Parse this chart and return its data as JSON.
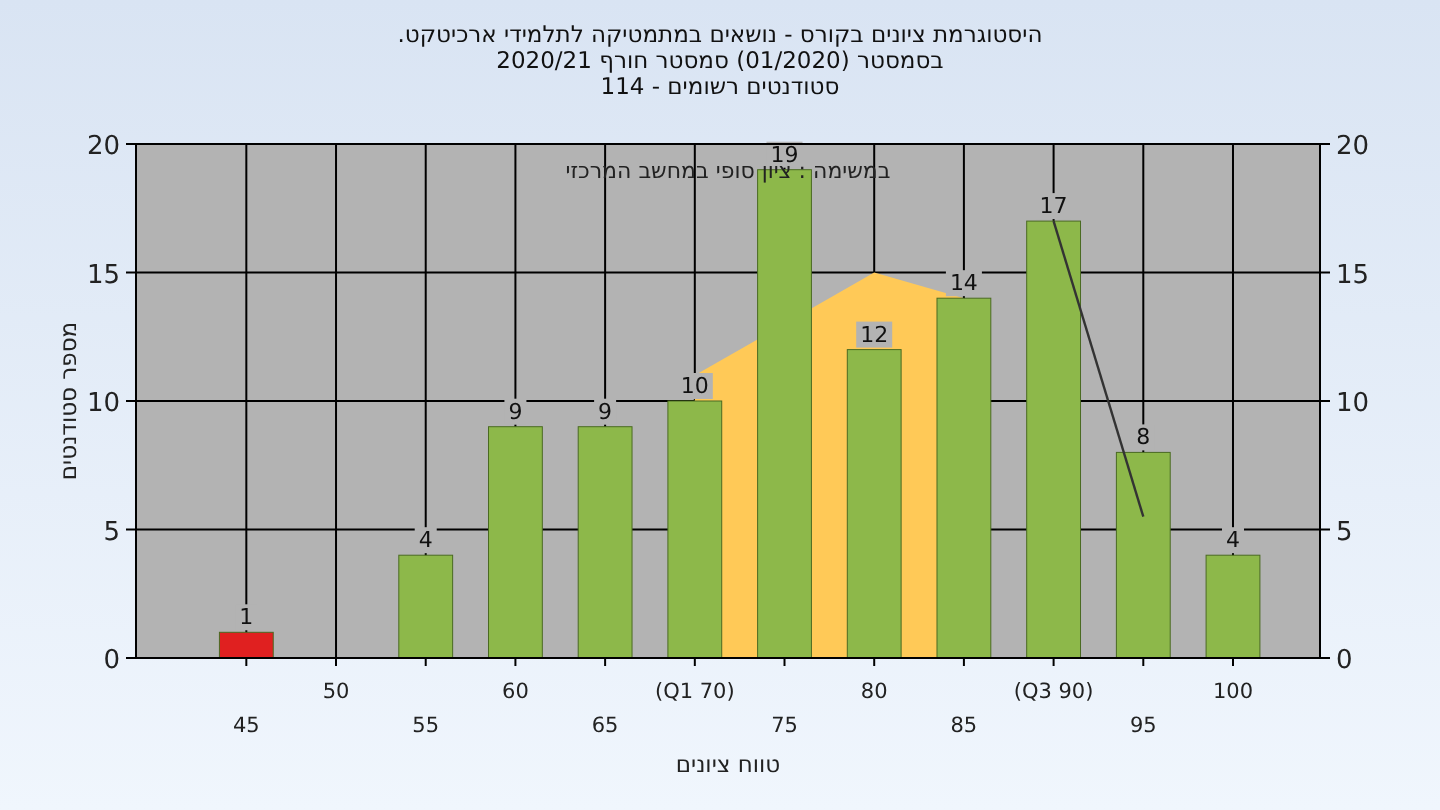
{
  "chart_data": {
    "type": "bar",
    "title": "היסטוגרמת ציונים בקורס - נושאים במתמטיקה לתלמידי ארכיטקט.",
    "subtitle": "בסמסטר  (01/2020)  סמסטר חורף 2020/21\nסטודנטים רשומים - 114",
    "xlabel": "טווח ציונים",
    "ylabel": "מספר סטודנטים",
    "annotations": [
      "במשימה : ציון סופי במחשב המרכזי"
    ],
    "categories": [
      "45",
      "50",
      "55",
      "60",
      "65",
      "(Q1 70)",
      "75",
      "80",
      "85",
      "(Q3 90)",
      "95",
      "100"
    ],
    "series": [
      {
        "type": "area",
        "color": "#ffc957",
        "values": [
          null,
          null,
          null,
          null,
          null,
          11,
          null,
          15,
          14,
          null,
          null,
          null
        ]
      },
      {
        "colors": [
          "#e02020",
          null,
          "#8db84a",
          "#8db84a",
          "#8db84a",
          "#8db84a",
          "#8db84a",
          "#8db84a",
          "#8db84a",
          "#8db84a",
          "#8db84a",
          "#8db84a"
        ],
        "values": [
          1,
          null,
          4,
          9,
          9,
          10,
          19,
          12,
          14,
          17,
          8,
          4
        ],
        "value_labels": [
          "1",
          null,
          "4",
          "9",
          "9",
          "10",
          "19",
          "12",
          "14",
          "17",
          "8",
          "4"
        ]
      },
      {
        "type": "line",
        "color": "#333333",
        "values": [
          null,
          null,
          null,
          null,
          null,
          null,
          null,
          null,
          null,
          17,
          5.5,
          null
        ]
      }
    ],
    "ylim": [
      0,
      20
    ],
    "yticks": [
      0,
      5,
      10,
      15,
      20
    ],
    "y2lim": [
      0,
      20
    ],
    "y2ticks": [
      0,
      5,
      10,
      15,
      20
    ],
    "grid": true
  }
}
